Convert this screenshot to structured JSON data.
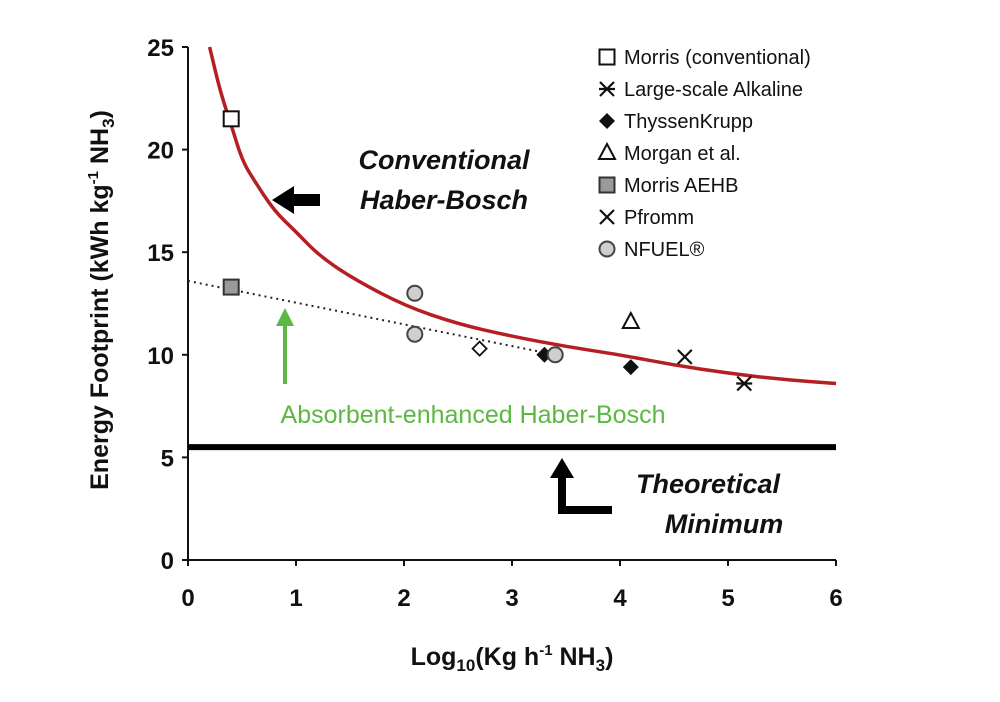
{
  "chart_data": {
    "type": "scatter",
    "xlabel": {
      "prefix": "Log",
      "sub": "10",
      "mid": "(Kg h",
      "sup": "-1",
      "mid2": " NH",
      "sub2": "3",
      "suffix": ")"
    },
    "ylabel": {
      "main": "Energy Footprint (kWh kg",
      "sup": "-1",
      "mid": " NH",
      "sub": "3",
      "suffix": ")"
    },
    "xlim": [
      0,
      6
    ],
    "ylim": [
      0,
      25
    ],
    "x_ticks": [
      "0",
      "1",
      "2",
      "3",
      "4",
      "5",
      "6"
    ],
    "y_ticks": [
      "0",
      "5",
      "10",
      "15",
      "20",
      "25"
    ],
    "series": [
      {
        "name": "Morris (conventional)",
        "marker": "open-square",
        "points": [
          [
            0.4,
            21.5
          ]
        ]
      },
      {
        "name": "Large-scale Alkaline",
        "marker": "asterisk",
        "points": [
          [
            5.15,
            8.6
          ]
        ]
      },
      {
        "name": "ThyssenKrupp",
        "marker": "filled-diamond",
        "points": [
          [
            3.3,
            10.0
          ],
          [
            4.1,
            9.4
          ]
        ]
      },
      {
        "name": "Morgan et al.",
        "marker": "open-triangle",
        "points": [
          [
            4.1,
            11.6
          ]
        ]
      },
      {
        "name": "Morris AEHB",
        "marker": "gray-square",
        "points": [
          [
            0.4,
            13.3
          ]
        ]
      },
      {
        "name": "Pfromm",
        "marker": "x",
        "points": [
          [
            4.6,
            9.9
          ]
        ]
      },
      {
        "name": "NFUEL®",
        "marker": "gray-circle",
        "points": [
          [
            2.1,
            13.0
          ],
          [
            2.1,
            11.0
          ],
          [
            3.4,
            10.0
          ]
        ]
      },
      {
        "name": "",
        "marker": "open-diamond",
        "points": [
          [
            2.7,
            10.3
          ]
        ]
      }
    ],
    "conventional_curve": {
      "color": "#b51f24",
      "points": [
        [
          0.2,
          25.0
        ],
        [
          0.3,
          22.8
        ],
        [
          0.4,
          21.2
        ],
        [
          0.5,
          19.5
        ],
        [
          0.6,
          18.6
        ],
        [
          0.8,
          17.0
        ],
        [
          1.0,
          16.0
        ],
        [
          1.2,
          14.9
        ],
        [
          1.5,
          13.8
        ],
        [
          2.0,
          12.4
        ],
        [
          2.5,
          11.5
        ],
        [
          3.0,
          10.9
        ],
        [
          3.5,
          10.4
        ],
        [
          4.0,
          10.0
        ],
        [
          4.5,
          9.5
        ],
        [
          5.0,
          9.1
        ],
        [
          5.5,
          8.8
        ],
        [
          6.0,
          8.6
        ]
      ]
    },
    "aehb_trend": {
      "style": "dotted",
      "points": [
        [
          0,
          13.6
        ],
        [
          3.4,
          10.0
        ]
      ]
    },
    "theoretical_minimum": 5.5,
    "annotations": {
      "conventional": [
        "Conventional",
        "Haber-Bosch"
      ],
      "aehb": "Absorbent-enhanced Haber-Bosch",
      "theoretical": [
        "Theoretical",
        "Minimum"
      ]
    },
    "legend_placement": "top-right",
    "grid": false,
    "colors": {
      "curve": "#b51f24",
      "green_annotation": "#5cb843",
      "marker_gray": "#9a9a9a",
      "circle_gray": "#cfcfcf"
    }
  }
}
